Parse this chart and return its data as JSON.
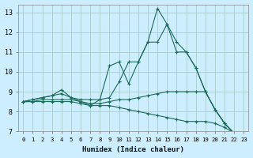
{
  "xlabel": "Humidex (Indice chaleur)",
  "bg_color": "#cceeff",
  "grid_color": "#aacccc",
  "line_color": "#1a6a5a",
  "xlim": [
    -0.5,
    23.5
  ],
  "ylim": [
    7,
    13.4
  ],
  "xticks": [
    0,
    1,
    2,
    3,
    4,
    5,
    6,
    7,
    8,
    9,
    10,
    11,
    12,
    13,
    14,
    15,
    16,
    17,
    18,
    19,
    20,
    21,
    22,
    23
  ],
  "yticks": [
    7,
    8,
    9,
    10,
    11,
    12,
    13
  ],
  "lines": [
    {
      "x": [
        0,
        1,
        2,
        3,
        4,
        5,
        6,
        7,
        8,
        9,
        10,
        11,
        12,
        13,
        14,
        15,
        16,
        17,
        18,
        19,
        20,
        21,
        22,
        23
      ],
      "y": [
        8.5,
        8.6,
        8.7,
        8.8,
        9.1,
        8.7,
        8.5,
        8.3,
        8.6,
        10.3,
        10.5,
        9.4,
        10.5,
        11.5,
        13.2,
        12.4,
        11.5,
        11.0,
        10.2,
        9.0,
        8.1,
        7.4,
        6.9,
        6.8
      ]
    },
    {
      "x": [
        0,
        1,
        2,
        3,
        4,
        5,
        6,
        7,
        8,
        9,
        10,
        11,
        12,
        13,
        14,
        15,
        16,
        17,
        18,
        19,
        20,
        21,
        22,
        23
      ],
      "y": [
        8.5,
        8.6,
        8.7,
        8.8,
        8.9,
        8.7,
        8.6,
        8.6,
        8.6,
        8.7,
        9.5,
        10.5,
        10.5,
        11.5,
        11.5,
        12.4,
        11.0,
        11.0,
        10.2,
        9.0,
        8.1,
        7.4,
        6.9,
        6.8
      ]
    },
    {
      "x": [
        0,
        1,
        2,
        3,
        4,
        5,
        6,
        7,
        8,
        9,
        10,
        11,
        12,
        13,
        14,
        15,
        16,
        17,
        18,
        19,
        20,
        21,
        22,
        23
      ],
      "y": [
        8.5,
        8.5,
        8.6,
        8.6,
        8.6,
        8.6,
        8.5,
        8.4,
        8.4,
        8.5,
        8.6,
        8.6,
        8.7,
        8.8,
        8.9,
        9.0,
        9.0,
        9.0,
        9.0,
        9.0,
        8.1,
        7.4,
        6.9,
        6.8
      ]
    },
    {
      "x": [
        0,
        1,
        2,
        3,
        4,
        5,
        6,
        7,
        8,
        9,
        10,
        11,
        12,
        13,
        14,
        15,
        16,
        17,
        18,
        19,
        20,
        21,
        22,
        23
      ],
      "y": [
        8.5,
        8.5,
        8.5,
        8.5,
        8.5,
        8.5,
        8.4,
        8.3,
        8.3,
        8.3,
        8.2,
        8.1,
        8.0,
        7.9,
        7.8,
        7.7,
        7.6,
        7.5,
        7.5,
        7.5,
        7.4,
        7.2,
        6.9,
        6.8
      ]
    }
  ]
}
